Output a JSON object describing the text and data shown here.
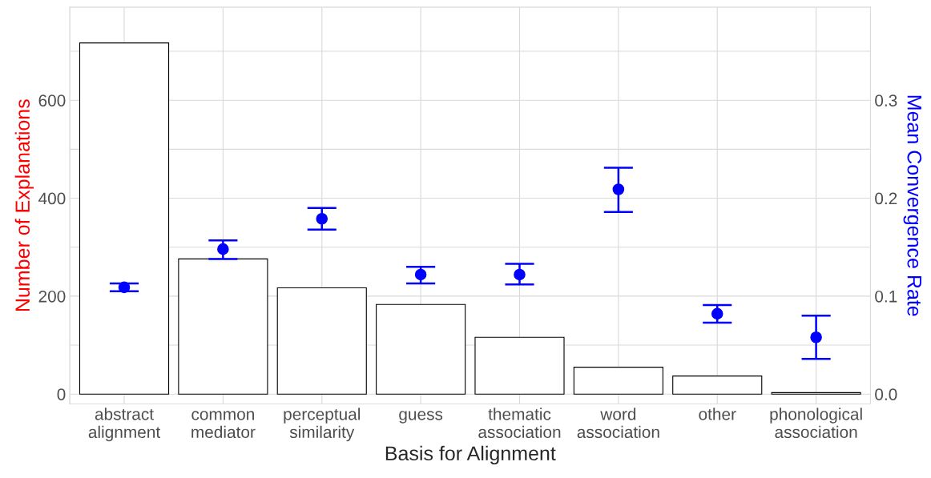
{
  "chart_data": {
    "type": "bar",
    "xlabel": "Basis for Alignment",
    "ylabel": "Number of Explanations",
    "y2label": "Mean Convergence Rate",
    "categories": [
      "abstract\nalignment",
      "common\nmediator",
      "perceptual\nsimilarity",
      "guess",
      "thematic\nassociation",
      "word\nassociation",
      "other",
      "phonological\nassociation"
    ],
    "series": [
      {
        "color": "#ffffff",
        "values": [
          717,
          276,
          217,
          183,
          116,
          55,
          37,
          3
        ]
      },
      {
        "type": "scatter",
        "axis": "y2",
        "color": "#0000ff",
        "values": [
          0.109,
          0.148,
          0.179,
          0.122,
          0.122,
          0.209,
          0.082,
          0.058
        ],
        "errors": [
          [
            0.105,
            0.113
          ],
          [
            0.138,
            0.157
          ],
          [
            0.168,
            0.19
          ],
          [
            0.113,
            0.13
          ],
          [
            0.112,
            0.133
          ],
          [
            0.186,
            0.231
          ],
          [
            0.073,
            0.091
          ],
          [
            0.036,
            0.08
          ]
        ]
      }
    ],
    "ylim": [
      -20,
      790
    ],
    "yticks": [
      0,
      {
        "value": 100,
        "label": null
      },
      200,
      {
        "value": 300,
        "label": null
      },
      400,
      {
        "value": 500,
        "label": null
      },
      600,
      {
        "value": 700,
        "label": null
      }
    ],
    "y2lim": [
      -0.01,
      0.395
    ],
    "y2ticks": [
      {
        "value": 0,
        "label": "0.0"
      },
      0.1,
      0.2,
      0.3
    ],
    "grid": true,
    "marker": "circle"
  }
}
